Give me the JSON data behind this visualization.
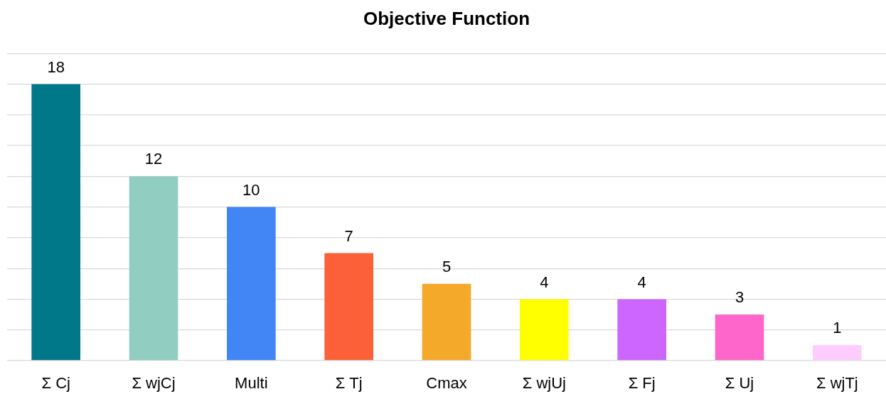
{
  "chart_data": {
    "type": "bar",
    "title": "Objective Function",
    "categories": [
      "Σ Cj",
      "Σ wjCj",
      "Multi",
      "Σ Tj",
      "Cmax",
      "Σ wjUj",
      "Σ Fj",
      "Σ Uj",
      "Σ wjTj"
    ],
    "values": [
      18,
      12,
      10,
      7,
      5,
      4,
      4,
      3,
      1
    ],
    "colors": [
      "#00788a",
      "#92cdc2",
      "#4285f4",
      "#fb6038",
      "#f5a92a",
      "#ffff00",
      "#cc66ff",
      "#ff66cc",
      "#ffccff"
    ],
    "ylim": [
      0,
      20
    ],
    "yticks": [
      {
        "value": 0,
        "label": null
      },
      {
        "value": 2,
        "label": null
      },
      {
        "value": 4,
        "label": null
      },
      {
        "value": 6,
        "label": null
      },
      {
        "value": 8,
        "label": null
      },
      {
        "value": 10,
        "label": null
      },
      {
        "value": 12,
        "label": null
      },
      {
        "value": 14,
        "label": null
      },
      {
        "value": 16,
        "label": null
      },
      {
        "value": 18,
        "label": null
      },
      {
        "value": 20,
        "label": null
      }
    ],
    "grid": "y",
    "tick_labels": "x",
    "data_labels": true
  }
}
